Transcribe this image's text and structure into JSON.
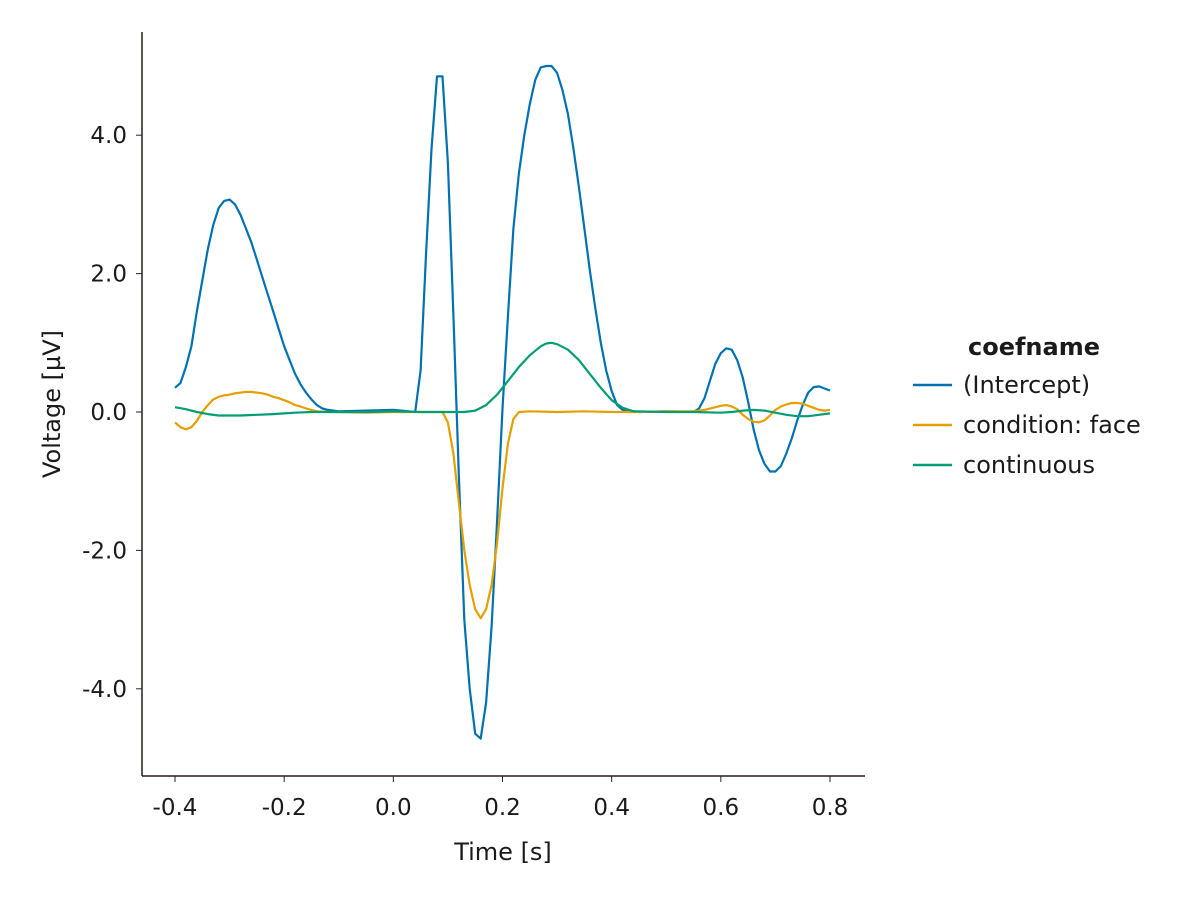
{
  "chart_data": {
    "type": "line",
    "title": "",
    "xlabel": "Time [s]",
    "ylabel": "Voltage [µV]",
    "xlim": [
      -0.46,
      0.86
    ],
    "ylim": [
      -5.3,
      5.5
    ],
    "grid": false,
    "legend_position": "right",
    "legend_title": "coefname",
    "x_ticks": [
      -0.4,
      -0.2,
      0.0,
      0.2,
      0.4,
      0.6,
      0.8
    ],
    "x_tick_labels": [
      "-0.4",
      "-0.2",
      "0.0",
      "0.2",
      "0.4",
      "0.6",
      "0.8"
    ],
    "y_ticks": [
      4.0,
      2.0,
      0.0,
      -2.0,
      -4.0
    ],
    "y_tick_labels": [
      "4.0",
      "2.0",
      "0.0",
      "-2.0",
      "-4.0"
    ],
    "series": [
      {
        "name": "(Intercept)",
        "color": "#0072B2",
        "points": [
          [
            -0.4,
            0.35
          ],
          [
            -0.39,
            0.42
          ],
          [
            -0.38,
            0.65
          ],
          [
            -0.37,
            0.95
          ],
          [
            -0.36,
            1.45
          ],
          [
            -0.35,
            1.9
          ],
          [
            -0.34,
            2.35
          ],
          [
            -0.33,
            2.7
          ],
          [
            -0.32,
            2.95
          ],
          [
            -0.31,
            3.05
          ],
          [
            -0.3,
            3.07
          ],
          [
            -0.29,
            3.0
          ],
          [
            -0.28,
            2.85
          ],
          [
            -0.27,
            2.65
          ],
          [
            -0.26,
            2.45
          ],
          [
            -0.25,
            2.2
          ],
          [
            -0.24,
            1.95
          ],
          [
            -0.23,
            1.7
          ],
          [
            -0.22,
            1.45
          ],
          [
            -0.21,
            1.2
          ],
          [
            -0.2,
            0.95
          ],
          [
            -0.19,
            0.75
          ],
          [
            -0.18,
            0.55
          ],
          [
            -0.17,
            0.4
          ],
          [
            -0.16,
            0.28
          ],
          [
            -0.15,
            0.18
          ],
          [
            -0.14,
            0.1
          ],
          [
            -0.13,
            0.05
          ],
          [
            -0.12,
            0.03
          ],
          [
            -0.1,
            0.01
          ],
          [
            -0.05,
            0.02
          ],
          [
            0.0,
            0.03
          ],
          [
            0.04,
            0.0
          ],
          [
            0.05,
            0.6
          ],
          [
            0.06,
            2.3
          ],
          [
            0.07,
            3.8
          ],
          [
            0.08,
            4.85
          ],
          [
            0.09,
            4.85
          ],
          [
            0.1,
            3.6
          ],
          [
            0.11,
            1.4
          ],
          [
            0.12,
            -0.9
          ],
          [
            0.13,
            -3.0
          ],
          [
            0.14,
            -4.0
          ],
          [
            0.15,
            -4.65
          ],
          [
            0.16,
            -4.72
          ],
          [
            0.17,
            -4.2
          ],
          [
            0.18,
            -3.1
          ],
          [
            0.19,
            -1.6
          ],
          [
            0.2,
            0.05
          ],
          [
            0.21,
            1.4
          ],
          [
            0.22,
            2.65
          ],
          [
            0.23,
            3.45
          ],
          [
            0.24,
            4.0
          ],
          [
            0.25,
            4.45
          ],
          [
            0.26,
            4.8
          ],
          [
            0.27,
            4.98
          ],
          [
            0.28,
            5.0
          ],
          [
            0.29,
            5.0
          ],
          [
            0.3,
            4.9
          ],
          [
            0.31,
            4.65
          ],
          [
            0.32,
            4.3
          ],
          [
            0.33,
            3.8
          ],
          [
            0.34,
            3.25
          ],
          [
            0.35,
            2.65
          ],
          [
            0.36,
            2.05
          ],
          [
            0.37,
            1.5
          ],
          [
            0.38,
            1.0
          ],
          [
            0.39,
            0.6
          ],
          [
            0.4,
            0.3
          ],
          [
            0.41,
            0.1
          ],
          [
            0.42,
            0.03
          ],
          [
            0.45,
            0.0
          ],
          [
            0.5,
            0.01
          ],
          [
            0.55,
            0.0
          ],
          [
            0.56,
            0.05
          ],
          [
            0.57,
            0.2
          ],
          [
            0.58,
            0.45
          ],
          [
            0.59,
            0.7
          ],
          [
            0.6,
            0.85
          ],
          [
            0.61,
            0.92
          ],
          [
            0.62,
            0.9
          ],
          [
            0.63,
            0.75
          ],
          [
            0.64,
            0.5
          ],
          [
            0.65,
            0.15
          ],
          [
            0.66,
            -0.25
          ],
          [
            0.67,
            -0.55
          ],
          [
            0.68,
            -0.75
          ],
          [
            0.69,
            -0.86
          ],
          [
            0.7,
            -0.86
          ],
          [
            0.71,
            -0.78
          ],
          [
            0.72,
            -0.6
          ],
          [
            0.73,
            -0.38
          ],
          [
            0.74,
            -0.12
          ],
          [
            0.75,
            0.1
          ],
          [
            0.76,
            0.28
          ],
          [
            0.77,
            0.36
          ],
          [
            0.78,
            0.37
          ],
          [
            0.79,
            0.34
          ],
          [
            0.8,
            0.31
          ]
        ]
      },
      {
        "name": "condition: face",
        "color": "#E69F00",
        "points": [
          [
            -0.4,
            -0.15
          ],
          [
            -0.39,
            -0.22
          ],
          [
            -0.38,
            -0.25
          ],
          [
            -0.37,
            -0.22
          ],
          [
            -0.36,
            -0.13
          ],
          [
            -0.35,
            0.0
          ],
          [
            -0.34,
            0.1
          ],
          [
            -0.33,
            0.18
          ],
          [
            -0.32,
            0.22
          ],
          [
            -0.31,
            0.24
          ],
          [
            -0.3,
            0.25
          ],
          [
            -0.29,
            0.27
          ],
          [
            -0.28,
            0.28
          ],
          [
            -0.27,
            0.29
          ],
          [
            -0.26,
            0.29
          ],
          [
            -0.25,
            0.28
          ],
          [
            -0.24,
            0.27
          ],
          [
            -0.23,
            0.25
          ],
          [
            -0.22,
            0.22
          ],
          [
            -0.21,
            0.2
          ],
          [
            -0.2,
            0.17
          ],
          [
            -0.19,
            0.14
          ],
          [
            -0.18,
            0.1
          ],
          [
            -0.17,
            0.08
          ],
          [
            -0.16,
            0.05
          ],
          [
            -0.15,
            0.03
          ],
          [
            -0.14,
            0.01
          ],
          [
            -0.12,
            0.0
          ],
          [
            -0.1,
            0.0
          ],
          [
            -0.05,
            -0.01
          ],
          [
            0.0,
            0.0
          ],
          [
            0.05,
            0.0
          ],
          [
            0.09,
            0.0
          ],
          [
            0.1,
            -0.15
          ],
          [
            0.11,
            -0.6
          ],
          [
            0.12,
            -1.3
          ],
          [
            0.13,
            -2.0
          ],
          [
            0.14,
            -2.5
          ],
          [
            0.15,
            -2.85
          ],
          [
            0.16,
            -2.98
          ],
          [
            0.17,
            -2.85
          ],
          [
            0.18,
            -2.5
          ],
          [
            0.19,
            -1.9
          ],
          [
            0.2,
            -1.1
          ],
          [
            0.21,
            -0.45
          ],
          [
            0.22,
            -0.1
          ],
          [
            0.23,
            0.0
          ],
          [
            0.25,
            0.01
          ],
          [
            0.3,
            0.0
          ],
          [
            0.35,
            0.01
          ],
          [
            0.4,
            0.0
          ],
          [
            0.45,
            0.0
          ],
          [
            0.5,
            0.01
          ],
          [
            0.55,
            0.01
          ],
          [
            0.57,
            0.03
          ],
          [
            0.59,
            0.07
          ],
          [
            0.6,
            0.09
          ],
          [
            0.61,
            0.1
          ],
          [
            0.62,
            0.08
          ],
          [
            0.63,
            0.04
          ],
          [
            0.64,
            -0.04
          ],
          [
            0.65,
            -0.1
          ],
          [
            0.66,
            -0.14
          ],
          [
            0.67,
            -0.15
          ],
          [
            0.68,
            -0.12
          ],
          [
            0.69,
            -0.05
          ],
          [
            0.7,
            0.03
          ],
          [
            0.71,
            0.08
          ],
          [
            0.72,
            0.11
          ],
          [
            0.73,
            0.13
          ],
          [
            0.74,
            0.13
          ],
          [
            0.75,
            0.12
          ],
          [
            0.76,
            0.09
          ],
          [
            0.77,
            0.06
          ],
          [
            0.78,
            0.03
          ],
          [
            0.79,
            0.02
          ],
          [
            0.8,
            0.03
          ]
        ]
      },
      {
        "name": "continuous",
        "color": "#009E73",
        "points": [
          [
            -0.4,
            0.07
          ],
          [
            -0.38,
            0.04
          ],
          [
            -0.36,
            0.0
          ],
          [
            -0.34,
            -0.03
          ],
          [
            -0.32,
            -0.05
          ],
          [
            -0.3,
            -0.05
          ],
          [
            -0.28,
            -0.05
          ],
          [
            -0.25,
            -0.04
          ],
          [
            -0.22,
            -0.03
          ],
          [
            -0.2,
            -0.02
          ],
          [
            -0.18,
            -0.01
          ],
          [
            -0.15,
            0.0
          ],
          [
            -0.1,
            0.0
          ],
          [
            -0.05,
            0.0
          ],
          [
            0.0,
            0.01
          ],
          [
            0.05,
            0.0
          ],
          [
            0.1,
            0.0
          ],
          [
            0.13,
            0.0
          ],
          [
            0.15,
            0.02
          ],
          [
            0.17,
            0.1
          ],
          [
            0.19,
            0.25
          ],
          [
            0.21,
            0.45
          ],
          [
            0.23,
            0.65
          ],
          [
            0.25,
            0.82
          ],
          [
            0.27,
            0.95
          ],
          [
            0.28,
            0.99
          ],
          [
            0.29,
            1.0
          ],
          [
            0.3,
            0.98
          ],
          [
            0.32,
            0.9
          ],
          [
            0.34,
            0.75
          ],
          [
            0.36,
            0.55
          ],
          [
            0.38,
            0.35
          ],
          [
            0.4,
            0.17
          ],
          [
            0.42,
            0.06
          ],
          [
            0.44,
            0.01
          ],
          [
            0.5,
            0.0
          ],
          [
            0.55,
            0.0
          ],
          [
            0.6,
            -0.01
          ],
          [
            0.62,
            0.0
          ],
          [
            0.64,
            0.02
          ],
          [
            0.66,
            0.03
          ],
          [
            0.68,
            0.02
          ],
          [
            0.7,
            -0.01
          ],
          [
            0.72,
            -0.04
          ],
          [
            0.74,
            -0.06
          ],
          [
            0.76,
            -0.06
          ],
          [
            0.78,
            -0.04
          ],
          [
            0.8,
            -0.02
          ]
        ]
      }
    ]
  }
}
